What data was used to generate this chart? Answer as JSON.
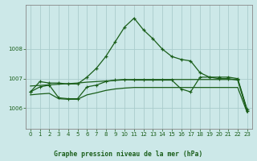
{
  "bg_color": "#cce8e8",
  "grid_color": "#aacccc",
  "line_color": "#1a5e1a",
  "spine_color": "#888888",
  "title": "Graphe pression niveau de la mer (hPa)",
  "xlim": [
    -0.5,
    23.5
  ],
  "ylim": [
    1005.3,
    1009.5
  ],
  "yticks": [
    1006,
    1007,
    1008
  ],
  "xticks": [
    0,
    1,
    2,
    3,
    4,
    5,
    6,
    7,
    8,
    9,
    10,
    11,
    12,
    13,
    14,
    15,
    16,
    17,
    18,
    19,
    20,
    21,
    22,
    23
  ],
  "series1_marked": {
    "x": [
      0,
      1,
      2,
      3,
      4,
      5,
      6,
      7,
      8,
      9,
      10,
      11,
      12,
      13,
      14,
      15,
      16,
      17,
      18,
      19,
      20,
      21,
      22,
      23
    ],
    "y": [
      1006.55,
      1006.9,
      1006.85,
      1006.85,
      1006.82,
      1006.82,
      1007.05,
      1007.35,
      1007.75,
      1008.25,
      1008.75,
      1009.05,
      1008.65,
      1008.35,
      1008.0,
      1007.75,
      1007.65,
      1007.6,
      1007.2,
      1007.05,
      1007.05,
      1007.05,
      1007.0,
      1005.95
    ]
  },
  "series2_flat": {
    "x": [
      0,
      1,
      2,
      3,
      4,
      5,
      6,
      7,
      8,
      9,
      10,
      11,
      12,
      13,
      14,
      15,
      16,
      17,
      18,
      19,
      20,
      21,
      22,
      23
    ],
    "y": [
      1006.75,
      1006.77,
      1006.79,
      1006.81,
      1006.83,
      1006.85,
      1006.88,
      1006.9,
      1006.92,
      1006.94,
      1006.96,
      1006.97,
      1006.97,
      1006.97,
      1006.97,
      1006.97,
      1006.97,
      1006.97,
      1006.97,
      1006.97,
      1006.97,
      1006.97,
      1006.97,
      1005.92
    ]
  },
  "series3_marked": {
    "x": [
      0,
      1,
      2,
      3,
      4,
      5,
      6,
      7,
      8,
      9,
      10,
      11,
      12,
      13,
      14,
      15,
      16,
      17,
      18,
      19,
      20,
      21,
      22,
      23
    ],
    "y": [
      1006.55,
      1006.72,
      1006.78,
      1006.35,
      1006.32,
      1006.32,
      1006.72,
      1006.78,
      1006.9,
      1006.95,
      1006.97,
      1006.95,
      1006.95,
      1006.95,
      1006.95,
      1006.95,
      1006.65,
      1006.55,
      1007.05,
      1007.05,
      1007.0,
      1007.0,
      1006.95,
      1005.9
    ]
  },
  "series4_flat": {
    "x": [
      0,
      1,
      2,
      3,
      4,
      5,
      6,
      7,
      8,
      9,
      10,
      11,
      12,
      13,
      14,
      15,
      16,
      17,
      18,
      19,
      20,
      21,
      22,
      23
    ],
    "y": [
      1006.45,
      1006.48,
      1006.5,
      1006.32,
      1006.3,
      1006.3,
      1006.45,
      1006.52,
      1006.6,
      1006.65,
      1006.68,
      1006.7,
      1006.7,
      1006.7,
      1006.7,
      1006.7,
      1006.7,
      1006.7,
      1006.7,
      1006.7,
      1006.7,
      1006.7,
      1006.7,
      1005.85
    ]
  }
}
